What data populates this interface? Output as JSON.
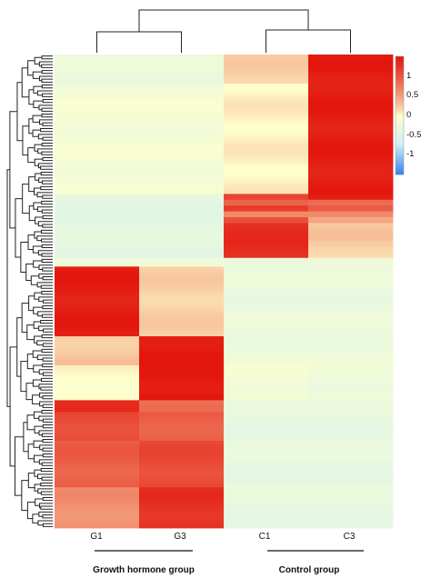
{
  "chart_data": {
    "type": "heatmap",
    "columns": [
      "G1",
      "G3",
      "C1",
      "C3"
    ],
    "groups": [
      {
        "name": "Growth hormone group",
        "columns": [
          "G1",
          "G3"
        ]
      },
      {
        "name": "Control group",
        "columns": [
          "C1",
          "C3"
        ]
      }
    ],
    "colorbar": {
      "ticks": [
        "1",
        "0.5",
        "0",
        "-0.5",
        "-1"
      ],
      "tick_values": [
        1,
        0.5,
        0,
        -0.5,
        -1
      ],
      "range": [
        -1.5,
        1.5
      ],
      "low_color": "#3a86f0",
      "mid_color": "#ffffcc",
      "high_color": "#e3170d"
    },
    "row_blocks": [
      {
        "rows": 10,
        "values": [
          -0.3,
          -0.3,
          0.2,
          1.45
        ]
      },
      {
        "rows": 38,
        "values": [
          -0.15,
          -0.15,
          0.05,
          1.45
        ]
      },
      {
        "rows": 2,
        "values": [
          -0.4,
          -0.4,
          1.1,
          1.4
        ]
      },
      {
        "rows": 2,
        "values": [
          -0.4,
          -0.4,
          0.9,
          0.85
        ]
      },
      {
        "rows": 2,
        "values": [
          -0.4,
          -0.4,
          1.25,
          1.0
        ]
      },
      {
        "rows": 2,
        "values": [
          -0.4,
          -0.4,
          0.7,
          0.7
        ]
      },
      {
        "rows": 2,
        "values": [
          -0.4,
          -0.4,
          1.1,
          0.5
        ]
      },
      {
        "rows": 6,
        "values": [
          -0.4,
          -0.4,
          1.3,
          0.25
        ]
      },
      {
        "rows": 6,
        "values": [
          -0.4,
          -0.4,
          1.35,
          0.2
        ]
      },
      {
        "rows": 3,
        "values": [
          -0.2,
          -0.2,
          -0.25,
          -0.2
        ]
      },
      {
        "rows": 24,
        "values": [
          1.45,
          0.2,
          -0.3,
          -0.3
        ]
      },
      {
        "rows": 10,
        "values": [
          0.25,
          1.5,
          -0.25,
          -0.25
        ]
      },
      {
        "rows": 12,
        "values": [
          0.0,
          1.5,
          -0.15,
          -0.25
        ]
      },
      {
        "rows": 4,
        "values": [
          1.3,
          0.8,
          -0.35,
          -0.35
        ]
      },
      {
        "rows": 10,
        "values": [
          1.1,
          0.95,
          -0.35,
          -0.35
        ]
      },
      {
        "rows": 16,
        "values": [
          0.95,
          1.1,
          -0.35,
          -0.35
        ]
      },
      {
        "rows": 14,
        "values": [
          0.6,
          1.3,
          -0.35,
          -0.35
        ]
      }
    ]
  }
}
